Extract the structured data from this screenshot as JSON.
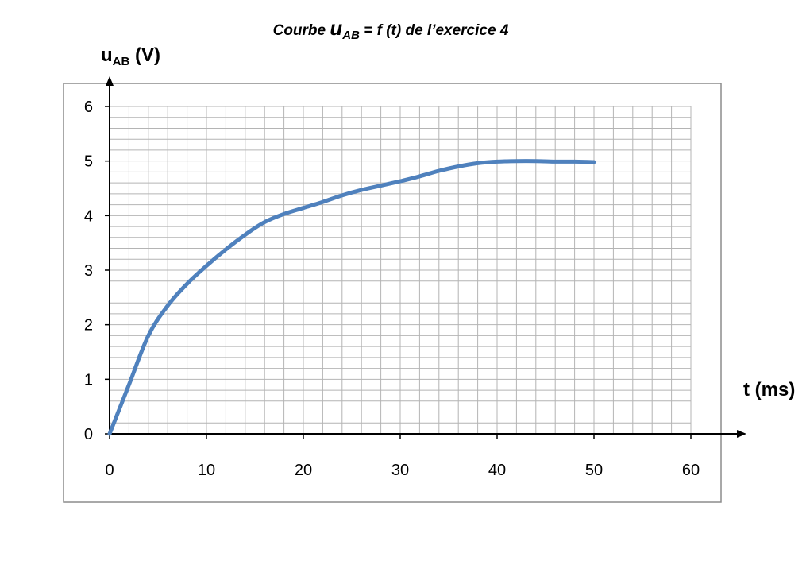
{
  "chart_data": {
    "type": "line",
    "title": {
      "prefix": "Courbe ",
      "symbol": "u",
      "subscript": "AB",
      "suffix": " = f (t) de l’exercice 4"
    },
    "ylabel": {
      "symbol": "u",
      "subscript": "AB",
      "unit": " (V)"
    },
    "xlabel": "t (ms)",
    "xlim": [
      0,
      60
    ],
    "ylim": [
      0,
      6
    ],
    "x_ticks": [
      "0",
      "10",
      "20",
      "30",
      "40",
      "50",
      "60"
    ],
    "y_ticks": [
      "0",
      "1",
      "2",
      "3",
      "4",
      "5",
      "6"
    ],
    "grid": true,
    "grid_minor": {
      "x_step": 2,
      "y_step": 0.2
    },
    "line_color": "#4f81bd",
    "series": [
      {
        "x": [
          0,
          2,
          4,
          6,
          8,
          10,
          12,
          14,
          16,
          18,
          20,
          22,
          24,
          26,
          28,
          30,
          32,
          34,
          36,
          38,
          40,
          42,
          44,
          46,
          48,
          50
        ],
        "y": [
          0,
          0.9,
          1.8,
          2.35,
          2.75,
          3.08,
          3.38,
          3.65,
          3.88,
          4.03,
          4.14,
          4.25,
          4.37,
          4.47,
          4.55,
          4.63,
          4.72,
          4.82,
          4.9,
          4.96,
          4.99,
          5.0,
          5.0,
          4.99,
          4.99,
          4.98
        ]
      }
    ]
  }
}
